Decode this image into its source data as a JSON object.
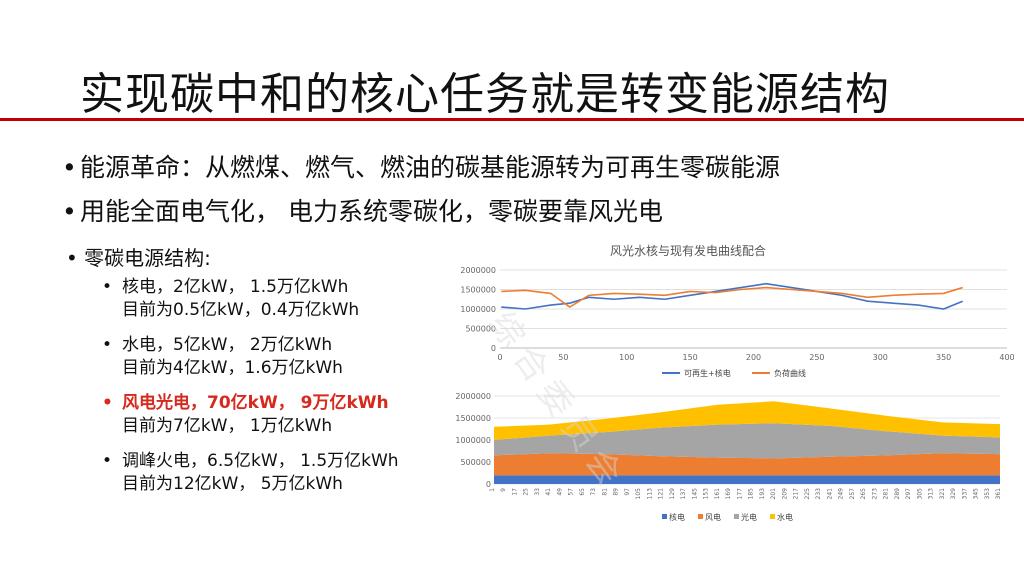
{
  "slide": {
    "title": "实现碳中和的核心任务就是转变能源结构",
    "bullets": [
      "能源革命：从燃煤、燃气、燃油的碳基能源转为可再生零碳能源",
      "用能全面电气化， 电力系统零碳化，零碳要靠风光电"
    ],
    "sub_heading": "零碳电源结构:",
    "items": [
      {
        "line1": "核电，2亿kW， 1.5万亿kWh",
        "line2": "目前为0.5亿kW，0.4万亿kWh",
        "highlight": false
      },
      {
        "line1": "水电，5亿kW， 2万亿kWh",
        "line2": "目前为4亿kW，1.6万亿kWh",
        "highlight": false
      },
      {
        "line1": "风电光电，70亿kW， 9万亿kWh",
        "line2": "目前为7亿kW， 1万亿kWh",
        "highlight": true
      },
      {
        "line1": "调峰火电，6.5亿kW， 1.5万亿kWh",
        "line2": "目前为12亿kW， 5万亿kWh",
        "highlight": false
      }
    ],
    "colors": {
      "accent": "#c00000",
      "highlight": "#d62a1e"
    }
  },
  "chart_data": [
    {
      "type": "line",
      "title": "风光水核与现有发电曲线配合",
      "xlim": [
        0,
        400
      ],
      "ylim": [
        0,
        2000000
      ],
      "x_ticks": [
        0,
        50,
        100,
        150,
        200,
        250,
        300,
        350,
        400
      ],
      "y_ticks": [
        "0",
        "500000",
        "1000000",
        "1500000",
        "2000000"
      ],
      "series": [
        {
          "name": "可再生+核电",
          "color": "#4472c4",
          "x": [
            1,
            20,
            40,
            55,
            70,
            90,
            110,
            130,
            150,
            170,
            190,
            210,
            230,
            250,
            270,
            290,
            310,
            330,
            350,
            365
          ],
          "values": [
            1050000,
            1000000,
            1100000,
            1150000,
            1300000,
            1250000,
            1300000,
            1250000,
            1350000,
            1450000,
            1550000,
            1650000,
            1550000,
            1450000,
            1350000,
            1200000,
            1150000,
            1100000,
            1000000,
            1200000
          ]
        },
        {
          "name": "负荷曲线",
          "color": "#ed7d31",
          "x": [
            1,
            20,
            40,
            55,
            70,
            90,
            110,
            130,
            150,
            170,
            190,
            210,
            230,
            250,
            270,
            290,
            310,
            330,
            350,
            365
          ],
          "values": [
            1450000,
            1480000,
            1400000,
            1050000,
            1350000,
            1400000,
            1380000,
            1350000,
            1450000,
            1420000,
            1500000,
            1550000,
            1500000,
            1450000,
            1400000,
            1300000,
            1350000,
            1380000,
            1400000,
            1550000
          ]
        }
      ]
    },
    {
      "type": "area",
      "stacked": true,
      "ylim": [
        0,
        2000000
      ],
      "y_ticks": [
        "0",
        "500000",
        "1000000",
        "1500000",
        "2000000"
      ],
      "x_ticks": [
        "1",
        "9",
        "17",
        "25",
        "33",
        "41",
        "49",
        "57",
        "65",
        "73",
        "81",
        "89",
        "97",
        "105",
        "113",
        "121",
        "129",
        "137",
        "145",
        "153",
        "161",
        "169",
        "177",
        "185",
        "193",
        "201",
        "209",
        "217",
        "225",
        "233",
        "241",
        "249",
        "257",
        "265",
        "273",
        "281",
        "289",
        "297",
        "305",
        "313",
        "321",
        "329",
        "337",
        "345",
        "353",
        "361"
      ],
      "x": [
        1,
        40,
        80,
        120,
        160,
        200,
        240,
        280,
        320,
        361
      ],
      "series": [
        {
          "name": "核电",
          "color": "#4472c4",
          "values": [
            200000,
            200000,
            200000,
            200000,
            200000,
            200000,
            200000,
            200000,
            200000,
            200000
          ]
        },
        {
          "name": "风电",
          "color": "#ed7d31",
          "values": [
            450000,
            500000,
            480000,
            430000,
            400000,
            380000,
            420000,
            450000,
            500000,
            480000
          ]
        },
        {
          "name": "光电",
          "color": "#a5a5a5",
          "values": [
            350000,
            400000,
            500000,
            650000,
            750000,
            800000,
            700000,
            550000,
            400000,
            380000
          ]
        },
        {
          "name": "水电",
          "color": "#ffc000",
          "values": [
            300000,
            250000,
            300000,
            350000,
            450000,
            500000,
            400000,
            350000,
            300000,
            300000
          ]
        }
      ]
    }
  ]
}
